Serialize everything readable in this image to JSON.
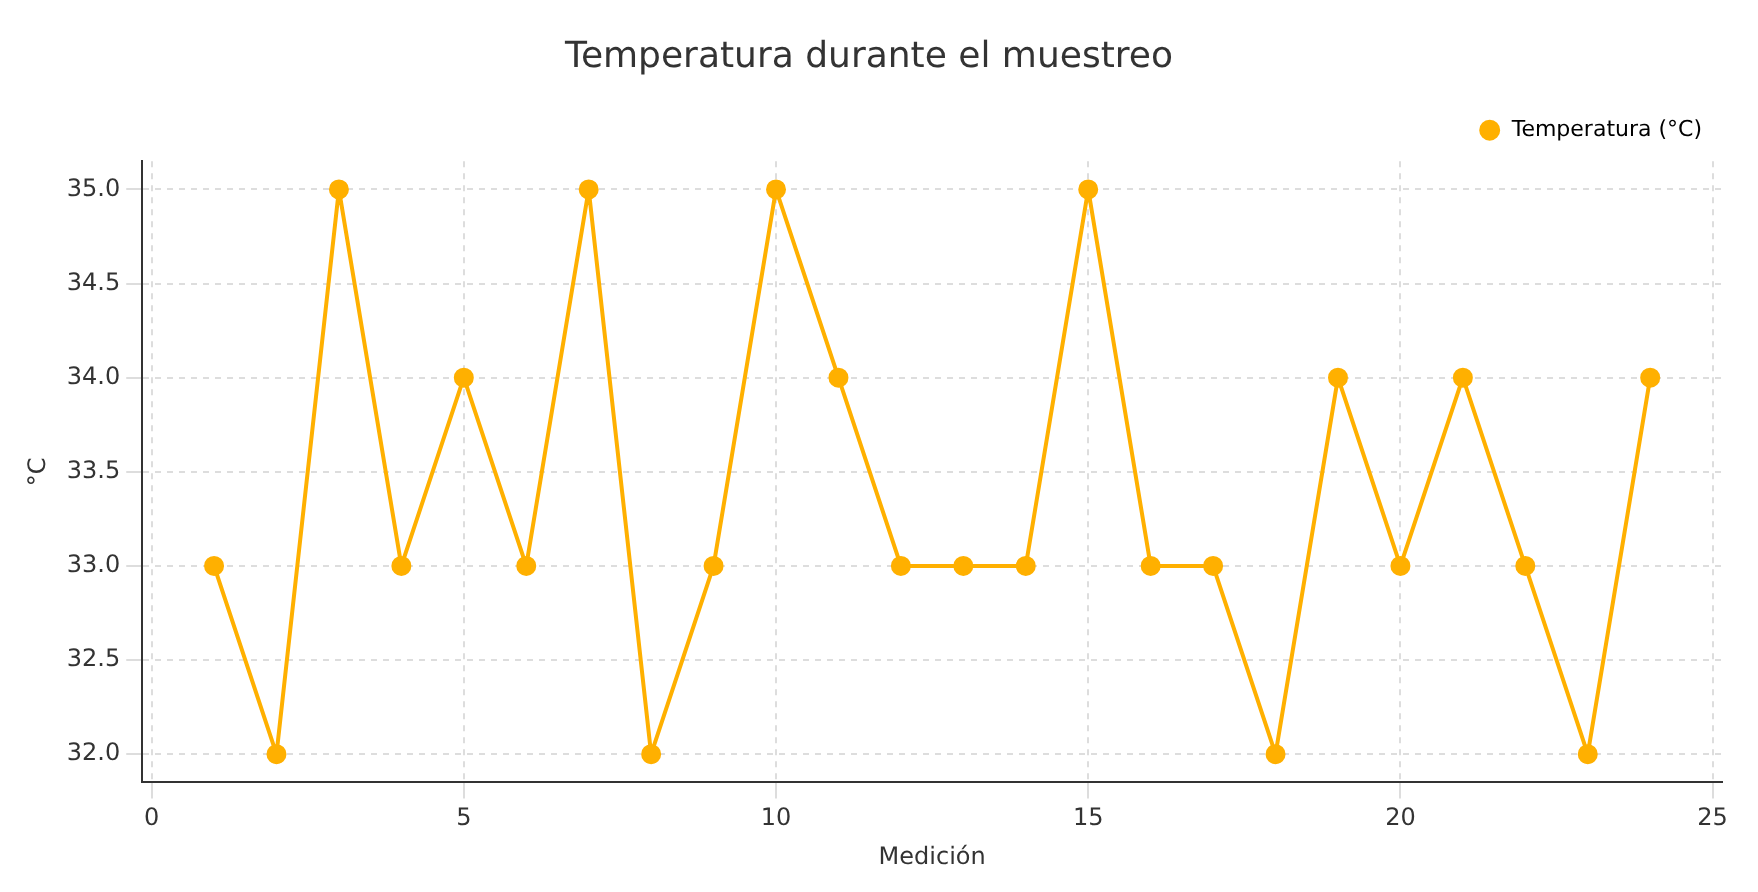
{
  "chart_data": {
    "type": "line",
    "title": "Temperatura durante el muestreo",
    "xlabel": "Medición",
    "ylabel": "°C",
    "x": [
      1,
      2,
      3,
      4,
      5,
      6,
      7,
      8,
      9,
      10,
      11,
      12,
      13,
      14,
      15,
      16,
      17,
      18,
      19,
      20,
      21,
      22,
      23,
      24
    ],
    "series": [
      {
        "name": "Temperatura (°C)",
        "color": "#ffb000",
        "values": [
          33,
          32,
          35,
          33,
          34,
          33,
          35,
          32,
          33,
          35,
          34,
          33,
          33,
          33,
          35,
          33,
          33,
          32,
          34,
          33,
          34,
          33,
          32,
          34
        ]
      }
    ],
    "xlim": [
      -0.15,
      25.15
    ],
    "xticks": [
      0,
      5,
      10,
      15,
      20,
      25
    ],
    "ylim": [
      31.85,
      35.15
    ],
    "yticks": [
      {
        "value": 32,
        "label": "32.0"
      },
      {
        "value": 32.5,
        "label": "32.5"
      },
      {
        "value": 33,
        "label": "33.0"
      },
      {
        "value": 33.5,
        "label": "33.5"
      },
      {
        "value": 34,
        "label": "34.0"
      },
      {
        "value": 34.5,
        "label": "34.5"
      },
      {
        "value": 35,
        "label": "35.0"
      }
    ],
    "grid": true,
    "legend": "top right",
    "marker": "circle",
    "line_style": "solid"
  }
}
